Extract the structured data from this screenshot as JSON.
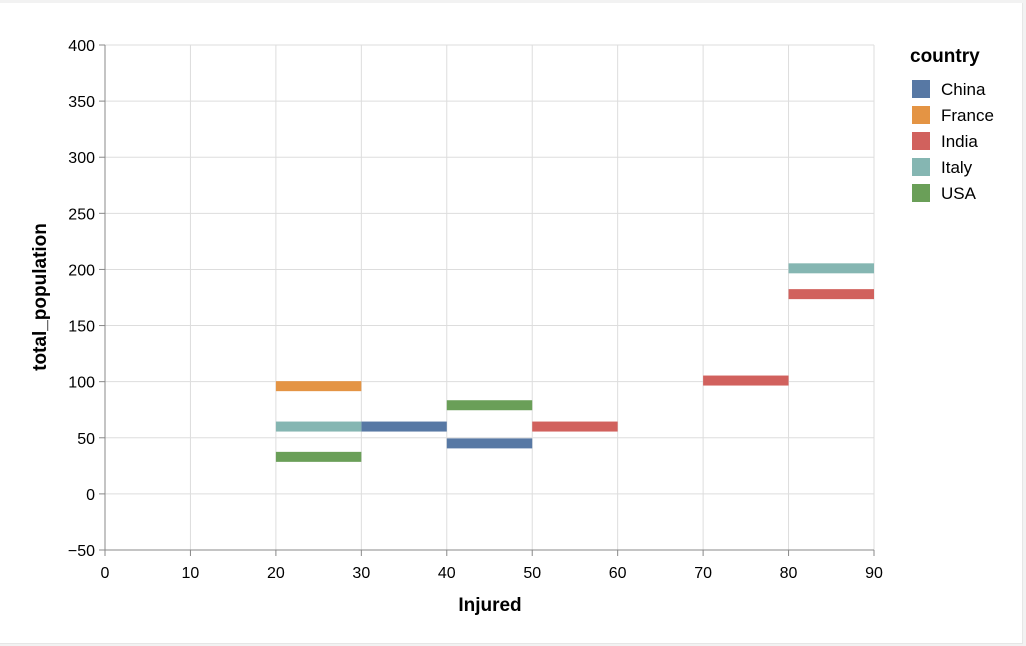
{
  "chart_data": {
    "type": "bar",
    "mark": "horizontal segments spanning an x interval",
    "xlabel": "Injured",
    "ylabel": "total_population",
    "xlim": [
      0,
      90
    ],
    "ylim": [
      -50,
      400
    ],
    "x_ticks": [
      0,
      10,
      20,
      30,
      40,
      50,
      60,
      70,
      80,
      90
    ],
    "y_ticks": [
      -50,
      0,
      50,
      100,
      150,
      200,
      250,
      300,
      350,
      400
    ],
    "y_tick_labels": [
      "−50",
      "0",
      "50",
      "100",
      "150",
      "200",
      "250",
      "300",
      "350",
      "400"
    ],
    "grid": true,
    "legend": {
      "title": "country",
      "position": "right",
      "entries": [
        {
          "name": "China",
          "color": "#5778a4"
        },
        {
          "name": "France",
          "color": "#e49444"
        },
        {
          "name": "India",
          "color": "#d1615d"
        },
        {
          "name": "Italy",
          "color": "#85b6b2"
        },
        {
          "name": "USA",
          "color": "#6a9f58"
        }
      ]
    },
    "series": [
      {
        "name": "China",
        "values": [
          {
            "x0": 30,
            "x1": 40,
            "y": 60
          },
          {
            "x0": 40,
            "x1": 50,
            "y": 45
          }
        ]
      },
      {
        "name": "France",
        "values": [
          {
            "x0": 20,
            "x1": 30,
            "y": 96
          }
        ]
      },
      {
        "name": "India",
        "values": [
          {
            "x0": 50,
            "x1": 60,
            "y": 60
          },
          {
            "x0": 70,
            "x1": 80,
            "y": 101
          },
          {
            "x0": 80,
            "x1": 90,
            "y": 178
          }
        ]
      },
      {
        "name": "Italy",
        "values": [
          {
            "x0": 20,
            "x1": 30,
            "y": 60
          },
          {
            "x0": 80,
            "x1": 90,
            "y": 201
          }
        ]
      },
      {
        "name": "USA",
        "values": [
          {
            "x0": 20,
            "x1": 30,
            "y": 33
          },
          {
            "x0": 40,
            "x1": 50,
            "y": 79
          }
        ]
      }
    ]
  }
}
